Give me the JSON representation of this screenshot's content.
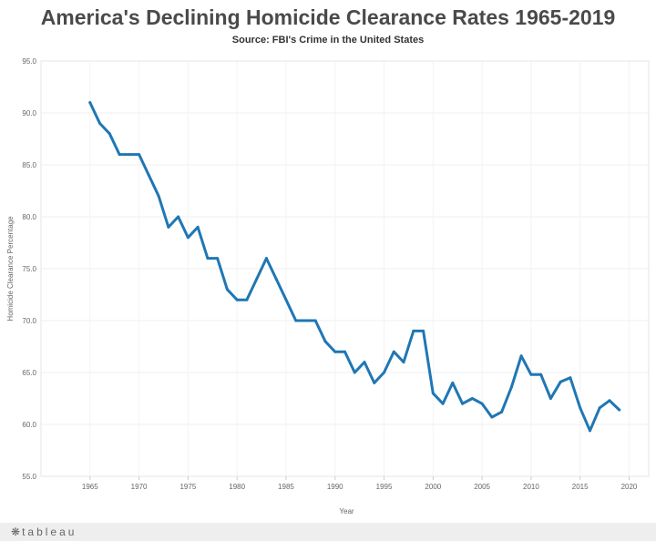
{
  "chart_data": {
    "type": "line",
    "title": "America's Declining Homicide Clearance Rates 1965-2019",
    "subtitle": "Source: FBI's Crime in the United States",
    "xlabel": "Year",
    "ylabel": "Homicide Clearance Percentage",
    "xlim": [
      1960,
      2022
    ],
    "ylim": [
      55,
      95
    ],
    "x_ticks": [
      1965,
      1970,
      1975,
      1980,
      1985,
      1990,
      1995,
      2000,
      2005,
      2010,
      2015,
      2020
    ],
    "y_ticks": [
      "55.0",
      "60.0",
      "65.0",
      "70.0",
      "75.0",
      "80.0",
      "85.0",
      "90.0",
      "95.0"
    ],
    "grid": true,
    "color": "#1f77b4",
    "x": [
      1965,
      1966,
      1967,
      1968,
      1969,
      1970,
      1971,
      1972,
      1973,
      1974,
      1975,
      1976,
      1977,
      1978,
      1979,
      1980,
      1981,
      1982,
      1983,
      1984,
      1985,
      1986,
      1987,
      1988,
      1989,
      1990,
      1991,
      1992,
      1993,
      1994,
      1995,
      1996,
      1997,
      1998,
      1999,
      2000,
      2001,
      2002,
      2003,
      2004,
      2005,
      2006,
      2007,
      2008,
      2009,
      2010,
      2011,
      2012,
      2013,
      2014,
      2015,
      2016,
      2017,
      2018,
      2019
    ],
    "values": [
      91,
      89,
      88,
      86,
      86,
      86,
      84,
      82,
      79,
      80,
      78,
      79,
      76,
      76,
      73,
      72,
      72,
      74,
      76,
      74,
      72,
      70,
      70,
      70,
      68,
      67,
      67,
      65,
      66,
      64,
      65,
      67,
      66,
      69,
      69,
      63,
      62,
      64,
      62,
      62.5,
      62,
      60.7,
      61.2,
      63.6,
      66.6,
      64.8,
      64.8,
      62.5,
      64.1,
      64.5,
      61.6,
      59.4,
      61.6,
      62.3,
      61.4
    ]
  },
  "footer": {
    "brand": "tableau",
    "brand_icon": "tableau-logo-icon"
  }
}
